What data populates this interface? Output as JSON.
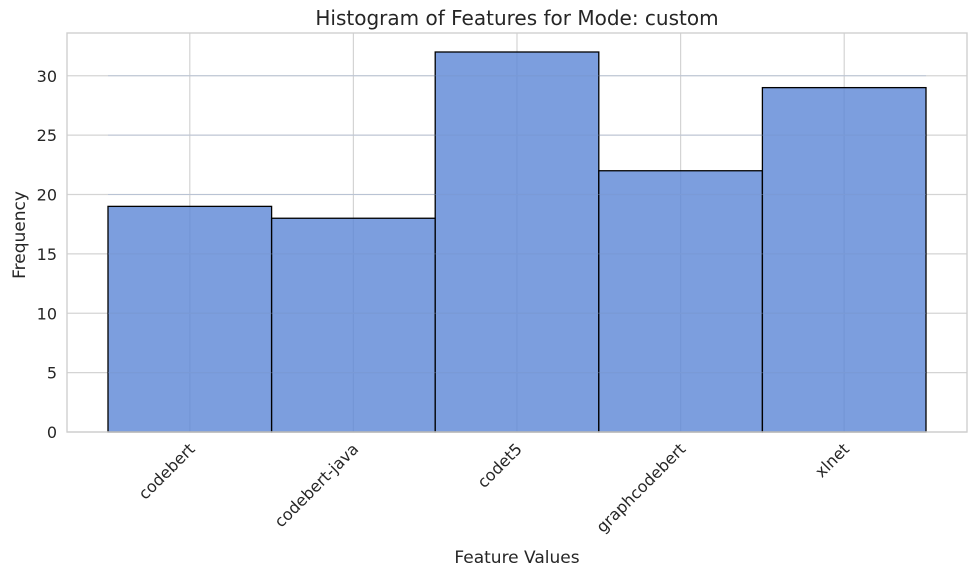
{
  "chart_data": {
    "type": "bar",
    "title": "Histogram of Features for Mode: custom",
    "xlabel": "Feature Values",
    "ylabel": "Frequency",
    "categories": [
      "codebert",
      "codebert-java",
      "codet5",
      "graphcodebert",
      "xlnet"
    ],
    "values": [
      19,
      18,
      32,
      22,
      29
    ],
    "ylim": [
      0,
      33.6
    ],
    "yticks": [
      0,
      5,
      10,
      15,
      20,
      25,
      30
    ],
    "x_tick_rotation_deg": 45,
    "grid": true,
    "bar_color": "#5b86d6",
    "bar_edge_color": "#000000",
    "grid_color": "#d4d4d4"
  }
}
